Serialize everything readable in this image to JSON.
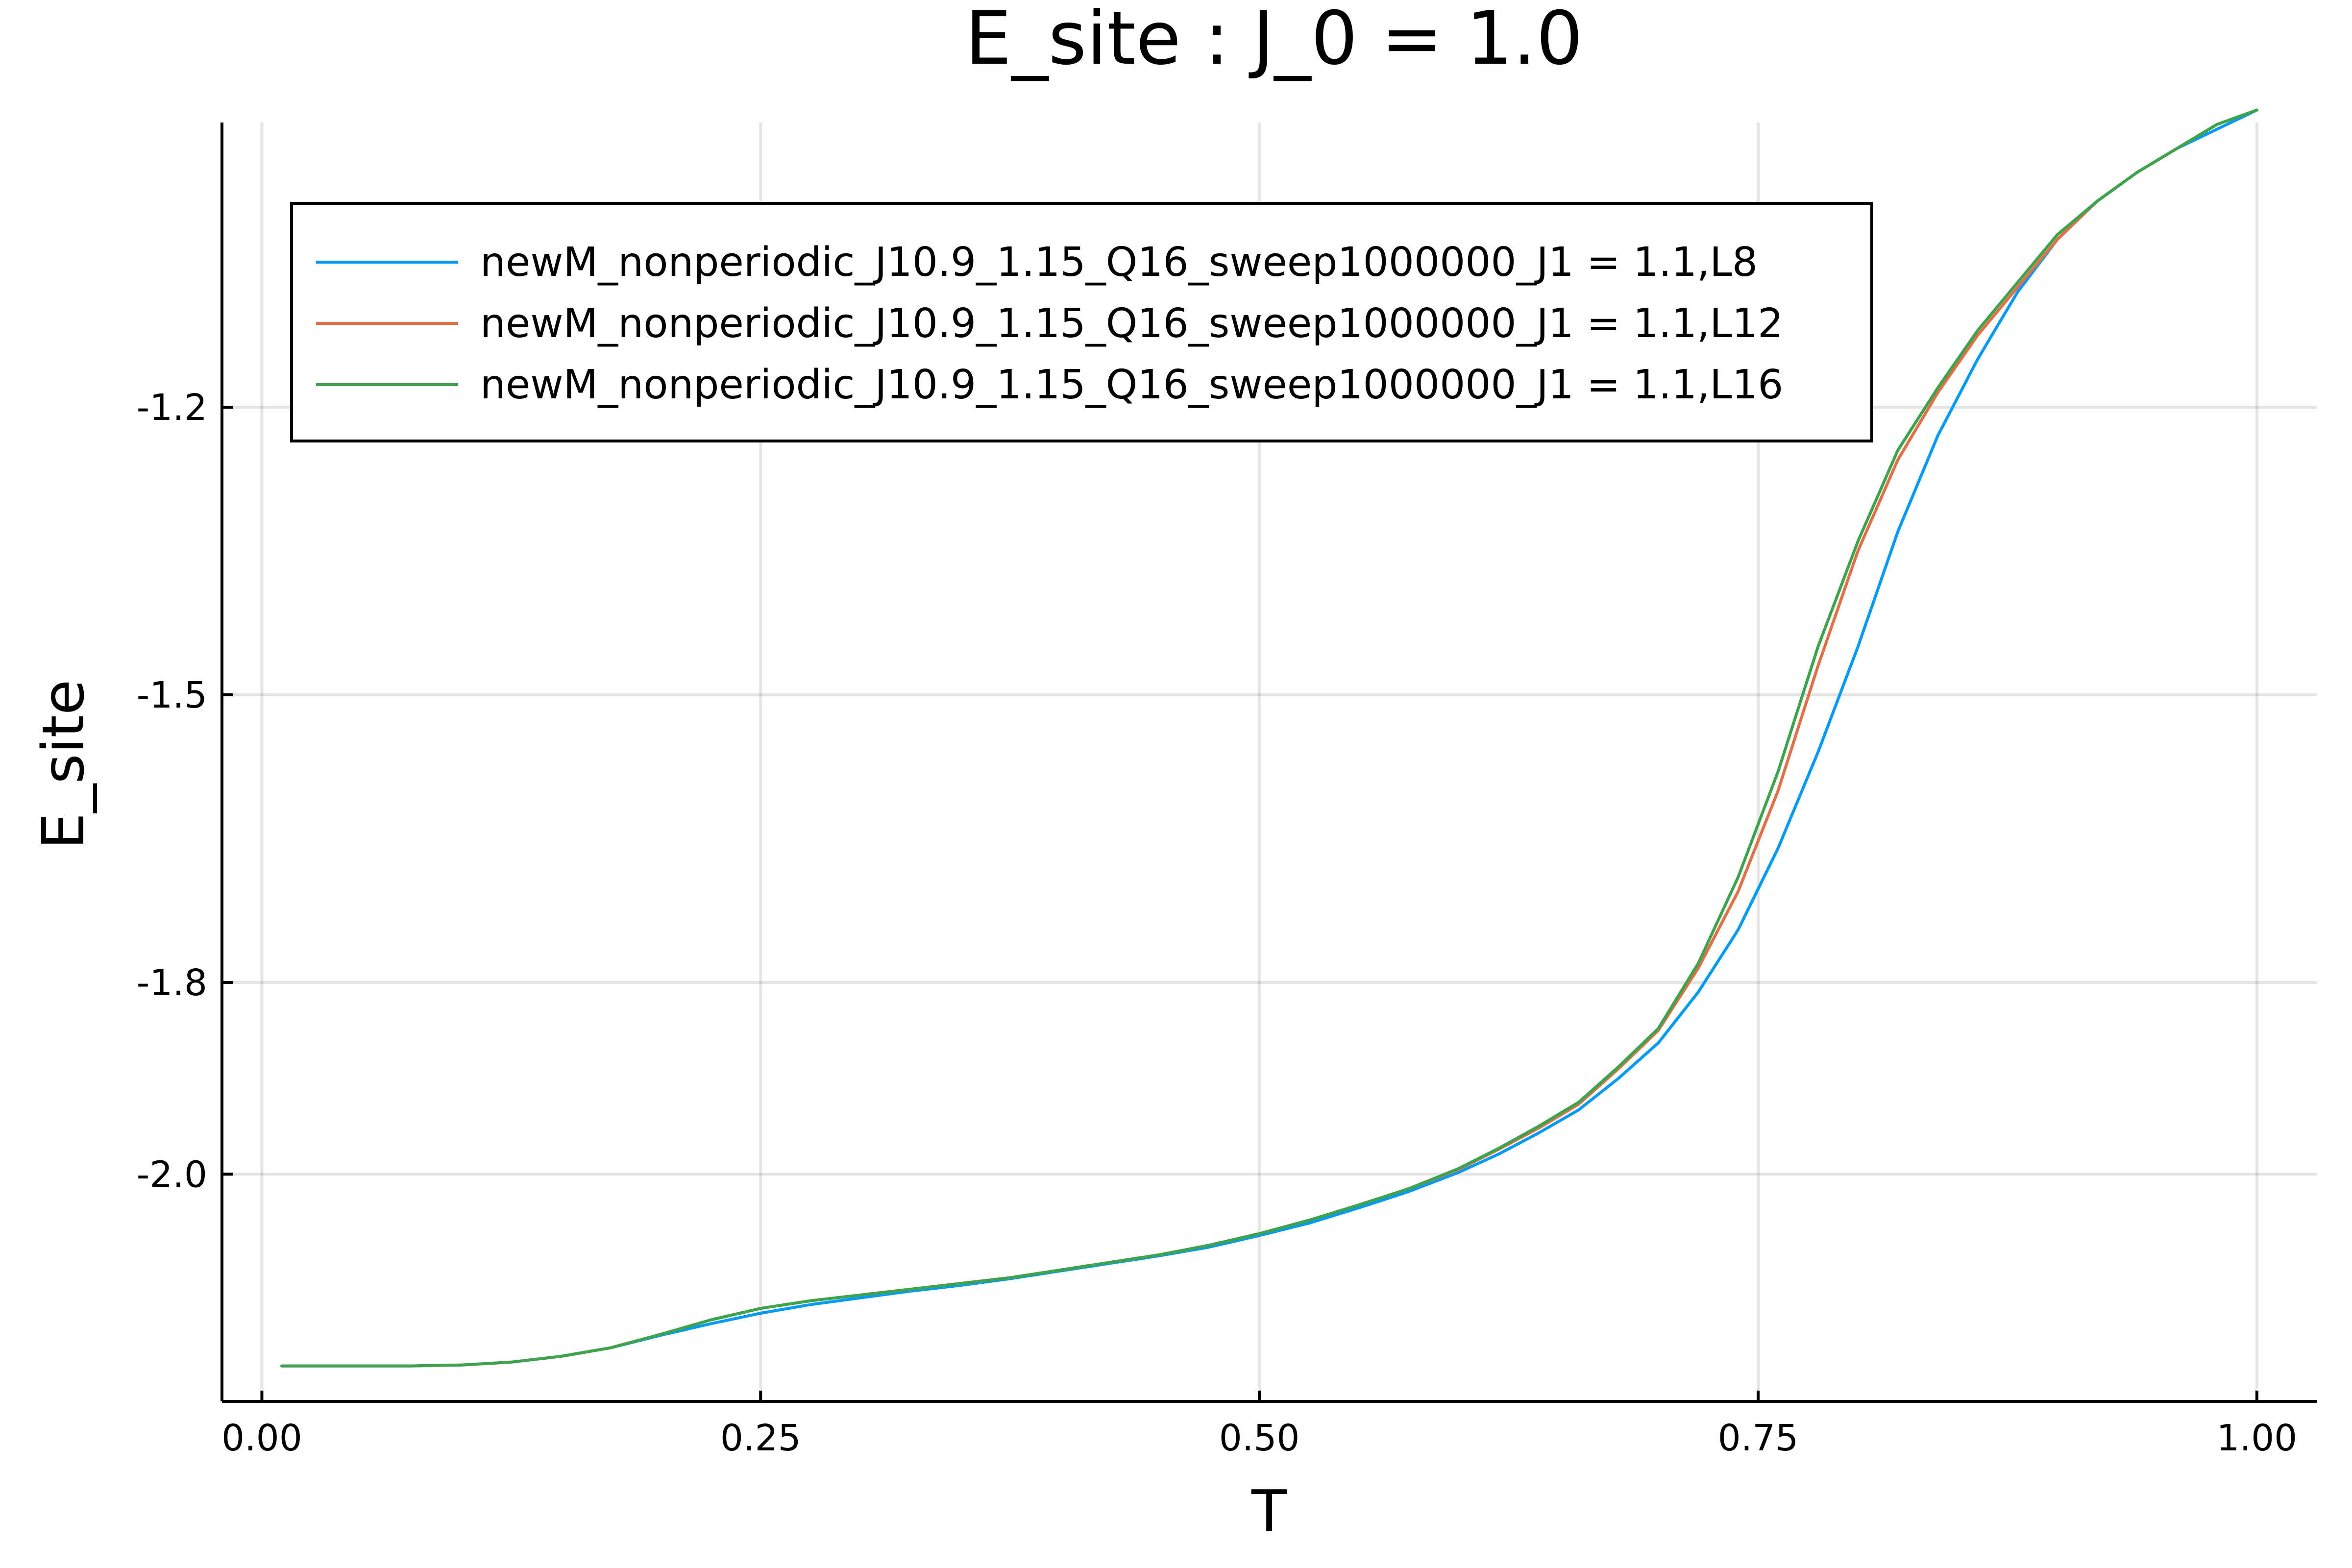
{
  "chart_data": {
    "type": "line",
    "title": "E_site : J_0 = 1.0",
    "xlabel": "T",
    "ylabel": "E_site",
    "xlim": [
      -0.02,
      1.03
    ],
    "ylim": [
      -2.237,
      -0.903
    ],
    "xticks": [
      0.0,
      0.25,
      0.5,
      0.75,
      1.0
    ],
    "xtick_labels": [
      "0.00",
      "0.25",
      "0.50",
      "0.75",
      "1.00"
    ],
    "yticks": [
      -2.0,
      -1.8,
      -1.5,
      -1.2
    ],
    "ytick_labels": [
      "-2.0",
      "-1.8",
      "-1.5",
      "-1.2"
    ],
    "grid": true,
    "legend_position": "top-left",
    "series": [
      {
        "name": "newM_nonperiodic_J10.9_1.15_Q16_sweep1000000_J1 = 1.1,L8",
        "color": "#009af9",
        "x": [
          0.01,
          0.05,
          0.075,
          0.1,
          0.125,
          0.15,
          0.175,
          0.2,
          0.225,
          0.25,
          0.275,
          0.3,
          0.325,
          0.35,
          0.375,
          0.4,
          0.425,
          0.45,
          0.475,
          0.5,
          0.525,
          0.55,
          0.575,
          0.6,
          0.62,
          0.64,
          0.66,
          0.68,
          0.7,
          0.72,
          0.74,
          0.76,
          0.78,
          0.8,
          0.82,
          0.84,
          0.86,
          0.88,
          0.9,
          0.92,
          0.94,
          0.96,
          0.98,
          1.0
        ],
        "y": [
          -2.2,
          -2.2,
          -2.2,
          -2.199,
          -2.196,
          -2.19,
          -2.181,
          -2.168,
          -2.156,
          -2.145,
          -2.136,
          -2.129,
          -2.122,
          -2.116,
          -2.109,
          -2.101,
          -2.093,
          -2.085,
          -2.076,
          -2.064,
          -2.051,
          -2.035,
          -2.018,
          -1.998,
          -1.979,
          -1.957,
          -1.933,
          -1.9,
          -1.863,
          -1.81,
          -1.745,
          -1.66,
          -1.56,
          -1.45,
          -1.33,
          -1.23,
          -1.15,
          -1.08,
          -1.025,
          -0.985,
          -0.955,
          -0.93,
          -0.91,
          -0.89
        ]
      },
      {
        "name": "newM_nonperiodic_J10.9_1.15_Q16_sweep1000000_J1 = 1.1,L12",
        "color": "#e26f46",
        "x": [
          0.01,
          0.05,
          0.075,
          0.1,
          0.125,
          0.15,
          0.175,
          0.2,
          0.225,
          0.25,
          0.275,
          0.3,
          0.325,
          0.35,
          0.375,
          0.4,
          0.425,
          0.45,
          0.475,
          0.5,
          0.525,
          0.55,
          0.575,
          0.6,
          0.62,
          0.64,
          0.66,
          0.68,
          0.7,
          0.72,
          0.74,
          0.76,
          0.78,
          0.8,
          0.82,
          0.84,
          0.86,
          0.88,
          0.9,
          0.92,
          0.94,
          0.96,
          0.98,
          1.0
        ],
        "y": [
          -2.2,
          -2.2,
          -2.2,
          -2.199,
          -2.196,
          -2.19,
          -2.181,
          -2.167,
          -2.152,
          -2.14,
          -2.132,
          -2.126,
          -2.12,
          -2.114,
          -2.108,
          -2.1,
          -2.092,
          -2.084,
          -2.074,
          -2.062,
          -2.048,
          -2.032,
          -2.015,
          -1.995,
          -1.974,
          -1.952,
          -1.927,
          -1.89,
          -1.85,
          -1.785,
          -1.705,
          -1.6,
          -1.47,
          -1.35,
          -1.255,
          -1.185,
          -1.125,
          -1.075,
          -1.025,
          -0.985,
          -0.955,
          -0.93,
          -0.905,
          -0.89
        ]
      },
      {
        "name": "newM_nonperiodic_J10.9_1.15_Q16_sweep1000000_J1 = 1.1,L16",
        "color": "#3da44d",
        "x": [
          0.01,
          0.05,
          0.075,
          0.1,
          0.125,
          0.15,
          0.175,
          0.2,
          0.225,
          0.25,
          0.275,
          0.3,
          0.325,
          0.35,
          0.375,
          0.4,
          0.425,
          0.45,
          0.475,
          0.5,
          0.525,
          0.55,
          0.575,
          0.6,
          0.62,
          0.64,
          0.66,
          0.68,
          0.7,
          0.72,
          0.74,
          0.76,
          0.78,
          0.8,
          0.82,
          0.84,
          0.86,
          0.88,
          0.9,
          0.92,
          0.94,
          0.96,
          0.98,
          1.0
        ],
        "y": [
          -2.2,
          -2.2,
          -2.2,
          -2.199,
          -2.196,
          -2.19,
          -2.181,
          -2.167,
          -2.152,
          -2.14,
          -2.132,
          -2.126,
          -2.12,
          -2.114,
          -2.108,
          -2.1,
          -2.092,
          -2.084,
          -2.074,
          -2.062,
          -2.048,
          -2.032,
          -2.015,
          -1.994,
          -1.973,
          -1.95,
          -1.925,
          -1.888,
          -1.848,
          -1.78,
          -1.69,
          -1.58,
          -1.45,
          -1.34,
          -1.245,
          -1.18,
          -1.12,
          -1.07,
          -1.02,
          -0.985,
          -0.955,
          -0.93,
          -0.905,
          -0.89
        ]
      }
    ]
  }
}
